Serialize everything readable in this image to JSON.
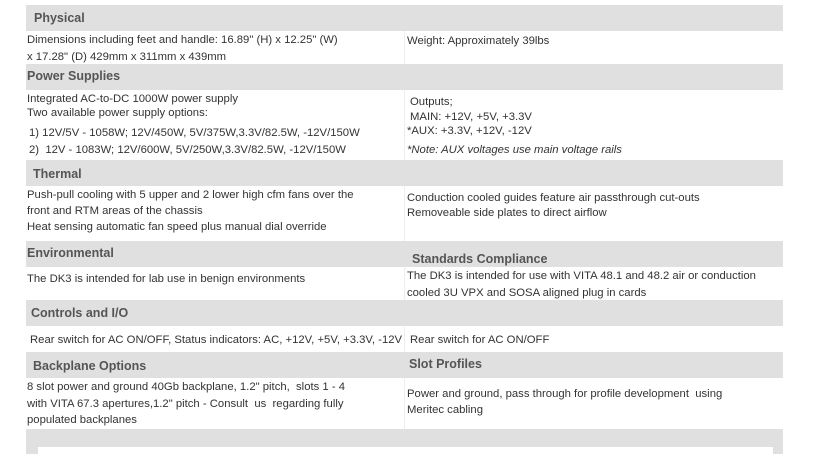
{
  "sections": {
    "physical": {
      "title": "Physical",
      "left": [
        "Dimensions including feet and handle: 16.89\" (H) x 12.25\" (W)",
        "x 17.28\" (D) 429mm x 311mm x 439mm"
      ],
      "right": [
        "Weight: Approximately 39lbs"
      ]
    },
    "power": {
      "title": "Power Supplies",
      "left": [
        "Integrated AC-to-DC 1000W power supply",
        "Two available power supply options:",
        "1) 12V/5V - 1058W; 12V/450W, 5V/375W,3.3V/82.5W, -12V/150W",
        "2)  12V - 1083W; 12V/600W, 5V/250W,3.3V/82.5W, -12V/150W"
      ],
      "right": [
        "Outputs;",
        "MAIN: +12V, +5V, +3.3V",
        "*AUX: +3.3V, +12V, -12V",
        "*Note: AUX voltages use main voltage rails"
      ]
    },
    "thermal": {
      "title": "Thermal",
      "left": [
        "Push-pull cooling with 5 upper and 2 lower high cfm fans over the",
        "front and RTM areas of the chassis",
        "Heat sensing automatic fan speed plus manual dial override"
      ],
      "right": [
        "Conduction cooled guides feature air passthrough cut-outs",
        "Removeable side plates to direct airflow"
      ]
    },
    "environmental": {
      "title": "Environmental",
      "right_title": "Standards Compliance",
      "left": [
        "The DK3 is intended for lab use in benign environments"
      ],
      "right": [
        "The DK3 is intended for use with VITA 48.1 and 48.2 air or conduction",
        "cooled 3U VPX and SOSA aligned plug in cards"
      ]
    },
    "controls": {
      "title": "Controls and I/O",
      "left": [
        "Rear switch for AC ON/OFF, Status indicators: AC, +12V, +5V, +3.3V, -12V"
      ],
      "right": [
        "Rear switch for AC ON/OFF"
      ]
    },
    "backplane": {
      "title": "Backplane Options",
      "right_title": "Slot Profiles",
      "left": [
        "8 slot power and ground 40Gb backplane, 1.2\" pitch,  slots 1 - 4",
        "with VITA 67.3 apertures,1.2\" pitch - Consult  us  regarding fully",
        "populated backplanes"
      ],
      "right": [
        "Power and ground, pass through for profile development  using",
        "Meritec cabling"
      ]
    }
  }
}
